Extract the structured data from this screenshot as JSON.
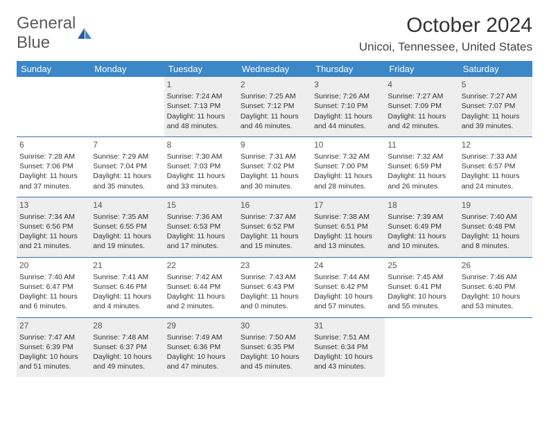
{
  "logo": {
    "text_a": "General",
    "text_b": "Blue"
  },
  "title": "October 2024",
  "location": "Unicoi, Tennessee, United States",
  "colors": {
    "header_bg": "#3b87c8",
    "header_text": "#ffffff",
    "row_border": "#3b6fa0",
    "shade_bg": "#eeeeee",
    "logo_blue": "#3b7fc4",
    "logo_gray": "#5a5a5a"
  },
  "day_headers": [
    "Sunday",
    "Monday",
    "Tuesday",
    "Wednesday",
    "Thursday",
    "Friday",
    "Saturday"
  ],
  "weeks": [
    [
      null,
      null,
      {
        "d": "1",
        "sr": "7:24 AM",
        "ss": "7:13 PM",
        "dl": "11 hours and 48 minutes."
      },
      {
        "d": "2",
        "sr": "7:25 AM",
        "ss": "7:12 PM",
        "dl": "11 hours and 46 minutes."
      },
      {
        "d": "3",
        "sr": "7:26 AM",
        "ss": "7:10 PM",
        "dl": "11 hours and 44 minutes."
      },
      {
        "d": "4",
        "sr": "7:27 AM",
        "ss": "7:09 PM",
        "dl": "11 hours and 42 minutes."
      },
      {
        "d": "5",
        "sr": "7:27 AM",
        "ss": "7:07 PM",
        "dl": "11 hours and 39 minutes."
      }
    ],
    [
      {
        "d": "6",
        "sr": "7:28 AM",
        "ss": "7:06 PM",
        "dl": "11 hours and 37 minutes."
      },
      {
        "d": "7",
        "sr": "7:29 AM",
        "ss": "7:04 PM",
        "dl": "11 hours and 35 minutes."
      },
      {
        "d": "8",
        "sr": "7:30 AM",
        "ss": "7:03 PM",
        "dl": "11 hours and 33 minutes."
      },
      {
        "d": "9",
        "sr": "7:31 AM",
        "ss": "7:02 PM",
        "dl": "11 hours and 30 minutes."
      },
      {
        "d": "10",
        "sr": "7:32 AM",
        "ss": "7:00 PM",
        "dl": "11 hours and 28 minutes."
      },
      {
        "d": "11",
        "sr": "7:32 AM",
        "ss": "6:59 PM",
        "dl": "11 hours and 26 minutes."
      },
      {
        "d": "12",
        "sr": "7:33 AM",
        "ss": "6:57 PM",
        "dl": "11 hours and 24 minutes."
      }
    ],
    [
      {
        "d": "13",
        "sr": "7:34 AM",
        "ss": "6:56 PM",
        "dl": "11 hours and 21 minutes."
      },
      {
        "d": "14",
        "sr": "7:35 AM",
        "ss": "6:55 PM",
        "dl": "11 hours and 19 minutes."
      },
      {
        "d": "15",
        "sr": "7:36 AM",
        "ss": "6:53 PM",
        "dl": "11 hours and 17 minutes."
      },
      {
        "d": "16",
        "sr": "7:37 AM",
        "ss": "6:52 PM",
        "dl": "11 hours and 15 minutes."
      },
      {
        "d": "17",
        "sr": "7:38 AM",
        "ss": "6:51 PM",
        "dl": "11 hours and 13 minutes."
      },
      {
        "d": "18",
        "sr": "7:39 AM",
        "ss": "6:49 PM",
        "dl": "11 hours and 10 minutes."
      },
      {
        "d": "19",
        "sr": "7:40 AM",
        "ss": "6:48 PM",
        "dl": "11 hours and 8 minutes."
      }
    ],
    [
      {
        "d": "20",
        "sr": "7:40 AM",
        "ss": "6:47 PM",
        "dl": "11 hours and 6 minutes."
      },
      {
        "d": "21",
        "sr": "7:41 AM",
        "ss": "6:46 PM",
        "dl": "11 hours and 4 minutes."
      },
      {
        "d": "22",
        "sr": "7:42 AM",
        "ss": "6:44 PM",
        "dl": "11 hours and 2 minutes."
      },
      {
        "d": "23",
        "sr": "7:43 AM",
        "ss": "6:43 PM",
        "dl": "11 hours and 0 minutes."
      },
      {
        "d": "24",
        "sr": "7:44 AM",
        "ss": "6:42 PM",
        "dl": "10 hours and 57 minutes."
      },
      {
        "d": "25",
        "sr": "7:45 AM",
        "ss": "6:41 PM",
        "dl": "10 hours and 55 minutes."
      },
      {
        "d": "26",
        "sr": "7:46 AM",
        "ss": "6:40 PM",
        "dl": "10 hours and 53 minutes."
      }
    ],
    [
      {
        "d": "27",
        "sr": "7:47 AM",
        "ss": "6:39 PM",
        "dl": "10 hours and 51 minutes."
      },
      {
        "d": "28",
        "sr": "7:48 AM",
        "ss": "6:37 PM",
        "dl": "10 hours and 49 minutes."
      },
      {
        "d": "29",
        "sr": "7:49 AM",
        "ss": "6:36 PM",
        "dl": "10 hours and 47 minutes."
      },
      {
        "d": "30",
        "sr": "7:50 AM",
        "ss": "6:35 PM",
        "dl": "10 hours and 45 minutes."
      },
      {
        "d": "31",
        "sr": "7:51 AM",
        "ss": "6:34 PM",
        "dl": "10 hours and 43 minutes."
      },
      null,
      null
    ]
  ],
  "labels": {
    "sunrise": "Sunrise: ",
    "sunset": "Sunset: ",
    "daylight": "Daylight: "
  }
}
